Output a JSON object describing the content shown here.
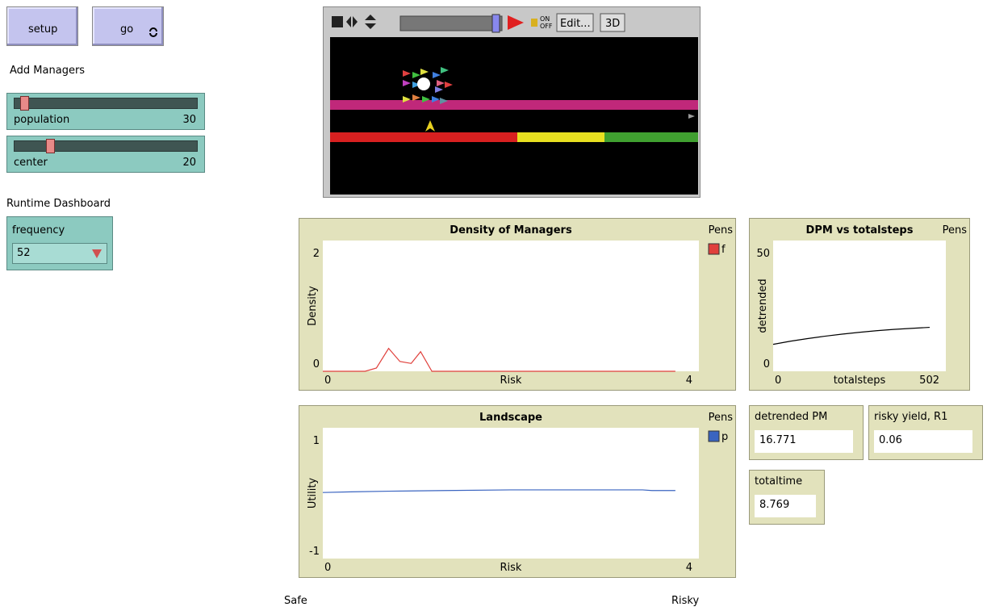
{
  "buttons": [
    {
      "label": "setup"
    },
    {
      "label": "go"
    }
  ],
  "notes": {
    "add_managers": "Add Managers",
    "runtime_dashboard": "Runtime Dashboard",
    "safe": "Safe",
    "risky": "Risky"
  },
  "sliders": [
    {
      "label": "population",
      "value": 30
    },
    {
      "label": "center",
      "value": 20
    }
  ],
  "chooser": {
    "label": "frequency",
    "value": 52
  },
  "view": {
    "on": "ON",
    "off": "OFF",
    "edit": "Edit...",
    "three_d": "3D"
  },
  "plots": [
    {
      "type": "line",
      "title": "Density of Managers",
      "x_label": "Risk",
      "y_label": "Density",
      "legend_title": "Pens",
      "xlim": [
        0,
        4
      ],
      "ylim": [
        0,
        2
      ],
      "xticks": [
        0,
        4
      ],
      "yticks": [
        0,
        2
      ],
      "series": [
        {
          "name": "f",
          "color": "#e0403c",
          "x": [
            0,
            0.45,
            0.57,
            0.7,
            0.82,
            0.94,
            1.04,
            1.16,
            2,
            3,
            3.75
          ],
          "values": [
            0,
            0,
            0.05,
            0.35,
            0.15,
            0.12,
            0.3,
            0,
            0,
            0,
            0
          ]
        }
      ]
    },
    {
      "type": "line",
      "title": "Landscape",
      "x_label": "Risk",
      "y_label": "Utility",
      "legend_title": "Pens",
      "xlim": [
        0,
        4
      ],
      "ylim": [
        -1,
        1
      ],
      "xticks": [
        0,
        4
      ],
      "yticks": [
        -1,
        1
      ],
      "series": [
        {
          "name": "p",
          "color": "#3a64c0",
          "x": [
            0,
            0.3,
            0.7,
            1.3,
            2,
            2.7,
            3.4,
            3.5,
            3.75
          ],
          "values": [
            0.01,
            0.02,
            0.03,
            0.04,
            0.05,
            0.05,
            0.05,
            0.04,
            0.04
          ]
        }
      ]
    },
    {
      "type": "line",
      "title": "DPM vs totalsteps",
      "x_label": "totalsteps",
      "y_label": "detrended",
      "legend_title": "Pens",
      "xlim": [
        0,
        502
      ],
      "ylim": [
        0,
        50
      ],
      "xticks": [
        0,
        502
      ],
      "yticks": [
        0,
        50
      ],
      "series": [
        {
          "color": "#000000",
          "x": [
            0,
            50,
            100,
            150,
            200,
            250,
            300,
            350,
            400,
            455
          ],
          "values": [
            10.3,
            11.5,
            12.5,
            13.4,
            14.2,
            14.9,
            15.5,
            16,
            16.4,
            16.8
          ]
        }
      ]
    }
  ],
  "monitors": [
    {
      "label": "detrended PM",
      "value": "16.771"
    },
    {
      "label": "risky yield, R1",
      "value": "0.06"
    },
    {
      "label": "totaltime",
      "value": "8.769"
    }
  ]
}
